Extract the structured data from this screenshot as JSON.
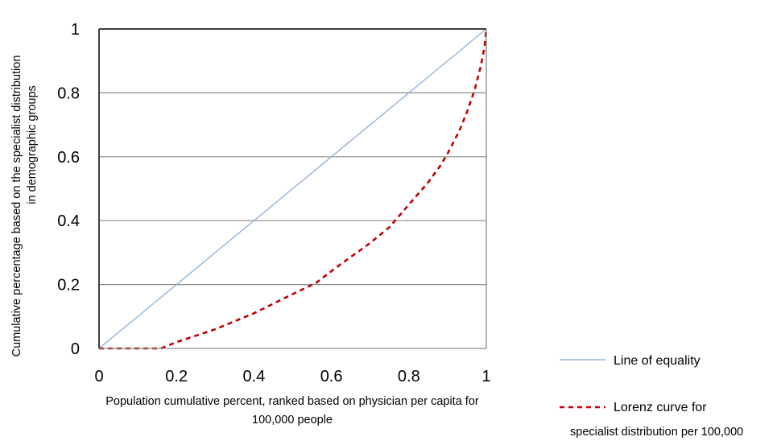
{
  "chart_data": {
    "type": "line",
    "title": "",
    "xlabel_lines": [
      "Population cumulative percent, ranked based on physician per capita for",
      "100,000 people"
    ],
    "ylabel_lines": [
      "Cumulative percentage  based on the  specialist distribution",
      "in demographic groups"
    ],
    "xlim": [
      0,
      1
    ],
    "ylim": [
      0,
      1
    ],
    "x_ticks": [
      {
        "value": 0,
        "label": "0"
      },
      {
        "value": 0.2,
        "label": "0.2"
      },
      {
        "value": 0.4,
        "label": "0.4"
      },
      {
        "value": 0.6,
        "label": "0.6"
      },
      {
        "value": 0.8,
        "label": "0.8"
      },
      {
        "value": 1,
        "label": "1"
      }
    ],
    "y_ticks": [
      {
        "value": 0,
        "label": "0"
      },
      {
        "value": 0.2,
        "label": "0.2"
      },
      {
        "value": 0.4,
        "label": "0.4"
      },
      {
        "value": 0.6,
        "label": "0.6"
      },
      {
        "value": 0.8,
        "label": "0.8"
      },
      {
        "value": 1,
        "label": "1"
      }
    ],
    "grid": "horizontal",
    "legend_position": "right-bottom",
    "series": [
      {
        "name": "Line of equality",
        "color": "#95b3d7",
        "style": "solid",
        "points": [
          [
            0,
            0
          ],
          [
            1,
            1
          ]
        ]
      },
      {
        "name": "Lorenz curve for",
        "name_line2": "specialist distribution per 100,000",
        "color": "#c00000",
        "style": "dashed",
        "points": [
          [
            0,
            0
          ],
          [
            0.16,
            0
          ],
          [
            0.2,
            0.02
          ],
          [
            0.3,
            0.06
          ],
          [
            0.4,
            0.11
          ],
          [
            0.5,
            0.17
          ],
          [
            0.56,
            0.205
          ],
          [
            0.62,
            0.26
          ],
          [
            0.7,
            0.33
          ],
          [
            0.75,
            0.38
          ],
          [
            0.8,
            0.45
          ],
          [
            0.85,
            0.52
          ],
          [
            0.88,
            0.57
          ],
          [
            0.9,
            0.61
          ],
          [
            0.93,
            0.68
          ],
          [
            0.95,
            0.74
          ],
          [
            0.97,
            0.81
          ],
          [
            0.985,
            0.88
          ],
          [
            0.995,
            0.94
          ],
          [
            1,
            1
          ]
        ]
      }
    ]
  }
}
